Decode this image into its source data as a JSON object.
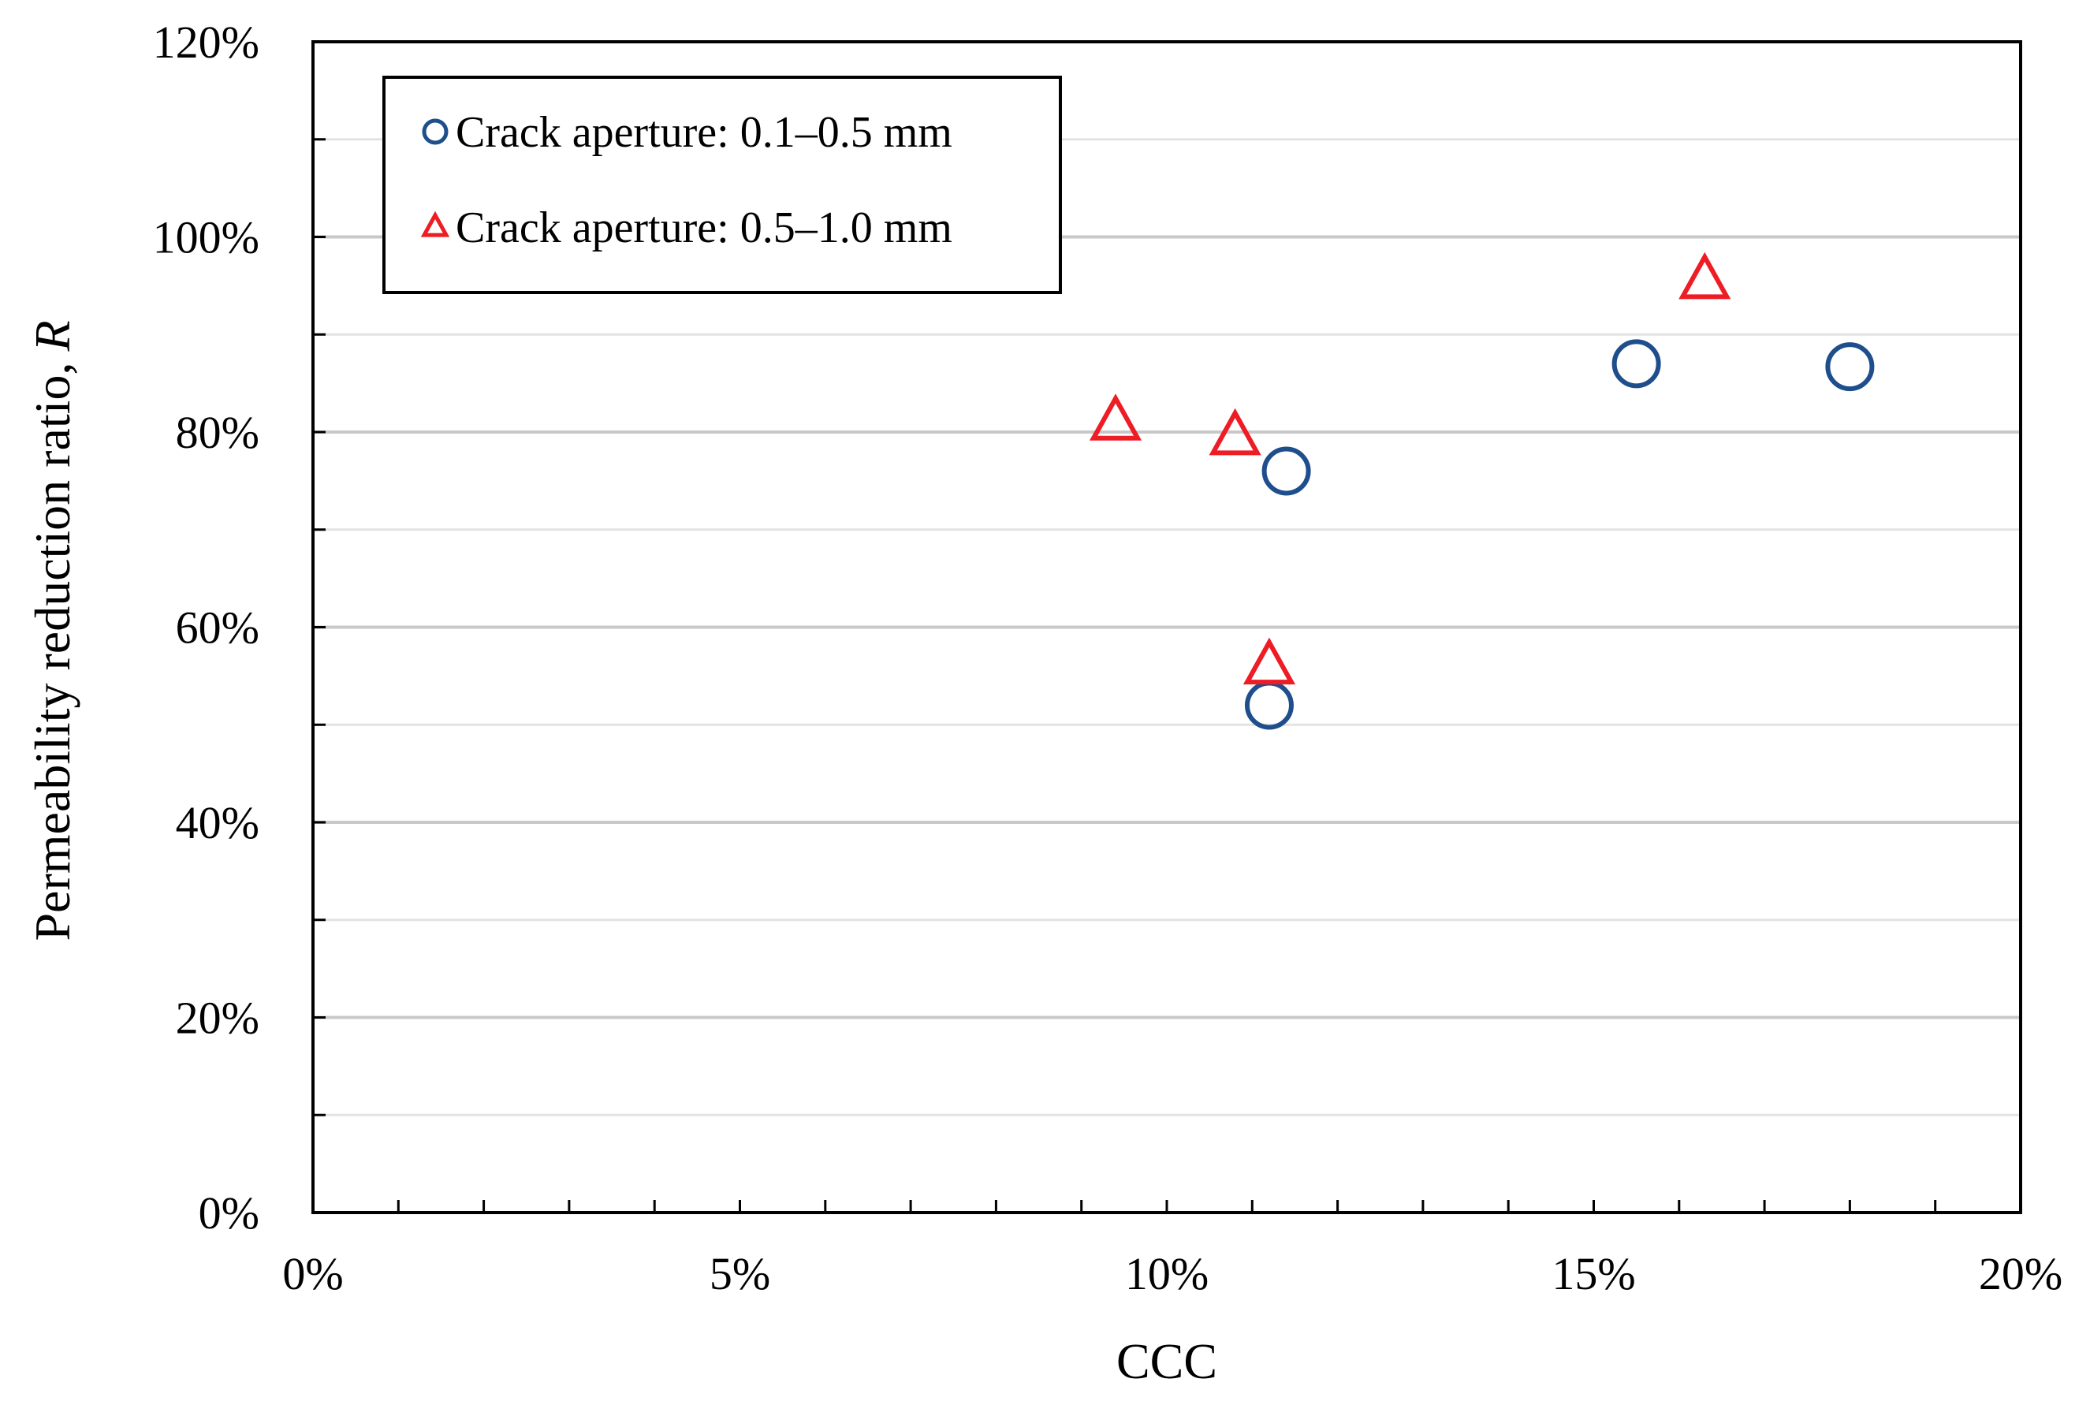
{
  "chart_data": {
    "type": "scatter",
    "title": "",
    "xlabel": "CCC",
    "ylabel": "Permeability reduction ratio,",
    "ylabel_symbol": "R",
    "xlim": [
      0,
      20
    ],
    "ylim": [
      0,
      120
    ],
    "x_ticks": [
      0,
      5,
      10,
      15,
      20
    ],
    "x_tick_labels": [
      "0%",
      "5%",
      "10%",
      "15%",
      "20%"
    ],
    "x_minor_step": 1,
    "y_ticks": [
      0,
      20,
      40,
      60,
      80,
      100,
      120
    ],
    "y_tick_labels": [
      "0%",
      "20%",
      "40%",
      "60%",
      "80%",
      "100%",
      "120%"
    ],
    "y_minor_step": 10,
    "grid": true,
    "legend_position": "top-left",
    "series": [
      {
        "name": "Crack aperture: 0.1–0.5 mm",
        "marker": "circle",
        "color": "#1f4e8c",
        "points": [
          {
            "x": 11.2,
            "y": 52
          },
          {
            "x": 11.4,
            "y": 76
          },
          {
            "x": 15.5,
            "y": 87
          },
          {
            "x": 18.0,
            "y": 86.7
          }
        ]
      },
      {
        "name": "Crack aperture: 0.5–1.0 mm",
        "marker": "triangle",
        "color": "#ee1c24",
        "points": [
          {
            "x": 9.4,
            "y": 81
          },
          {
            "x": 10.8,
            "y": 79.5
          },
          {
            "x": 11.2,
            "y": 56
          },
          {
            "x": 16.3,
            "y": 95.5
          }
        ]
      }
    ]
  }
}
